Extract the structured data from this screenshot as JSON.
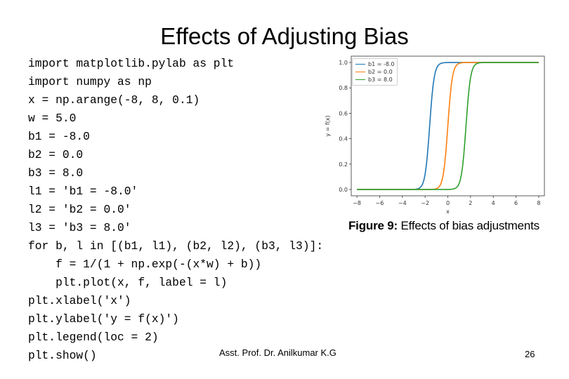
{
  "slide": {
    "title": "Effects of Adjusting Bias",
    "code_lines": [
      "import matplotlib.pylab as plt",
      "import numpy as np",
      "x = np.arange(-8, 8, 0.1)",
      "w = 5.0",
      "b1 = -8.0",
      "b2 = 0.0",
      "b3 = 8.0",
      "l1 = 'b1 = -8.0'",
      "l2 = 'b2 = 0.0'",
      "l3 = 'b3 = 8.0'",
      "for b, l in [(b1, l1), (b2, l2), (b3, l3)]:",
      "    f = 1/(1 + np.exp(-(x*w) + b))",
      "    plt.plot(x, f, label = l)",
      "plt.xlabel('x')",
      "plt.ylabel('y = f(x)')",
      "plt.legend(loc = 2)",
      "plt.show()"
    ],
    "footer_author": "Asst. Prof. Dr. Anilkumar K.G",
    "page_number": "26"
  },
  "figure": {
    "caption_label": "Figure 9:",
    "caption_text": " Effects of bias adjustments"
  },
  "chart_data": {
    "type": "line",
    "xlabel": "x",
    "ylabel": "y = f(x)",
    "xlim": [
      -8.5,
      8.5
    ],
    "ylim": [
      -0.05,
      1.05
    ],
    "xticks": [
      -8,
      -6,
      -4,
      -2,
      0,
      2,
      4,
      6,
      8
    ],
    "yticks": [
      0.0,
      0.2,
      0.4,
      0.6,
      0.8,
      1.0
    ],
    "ytick_labels": [
      "0.0",
      "0.2",
      "0.4",
      "0.6",
      "0.8",
      "1.0"
    ],
    "weight": 5.0,
    "x_start": -8,
    "x_end": 8,
    "x_step": 0.1,
    "legend_position": "top-left",
    "grid": false,
    "series": [
      {
        "name": "b1 = -8.0",
        "bias": -8.0,
        "color": "#1f77b4"
      },
      {
        "name": "b2 = 0.0",
        "bias": 0.0,
        "color": "#ff7f0e"
      },
      {
        "name": "b3 = 8.0",
        "bias": 8.0,
        "color": "#2ca02c"
      }
    ]
  }
}
